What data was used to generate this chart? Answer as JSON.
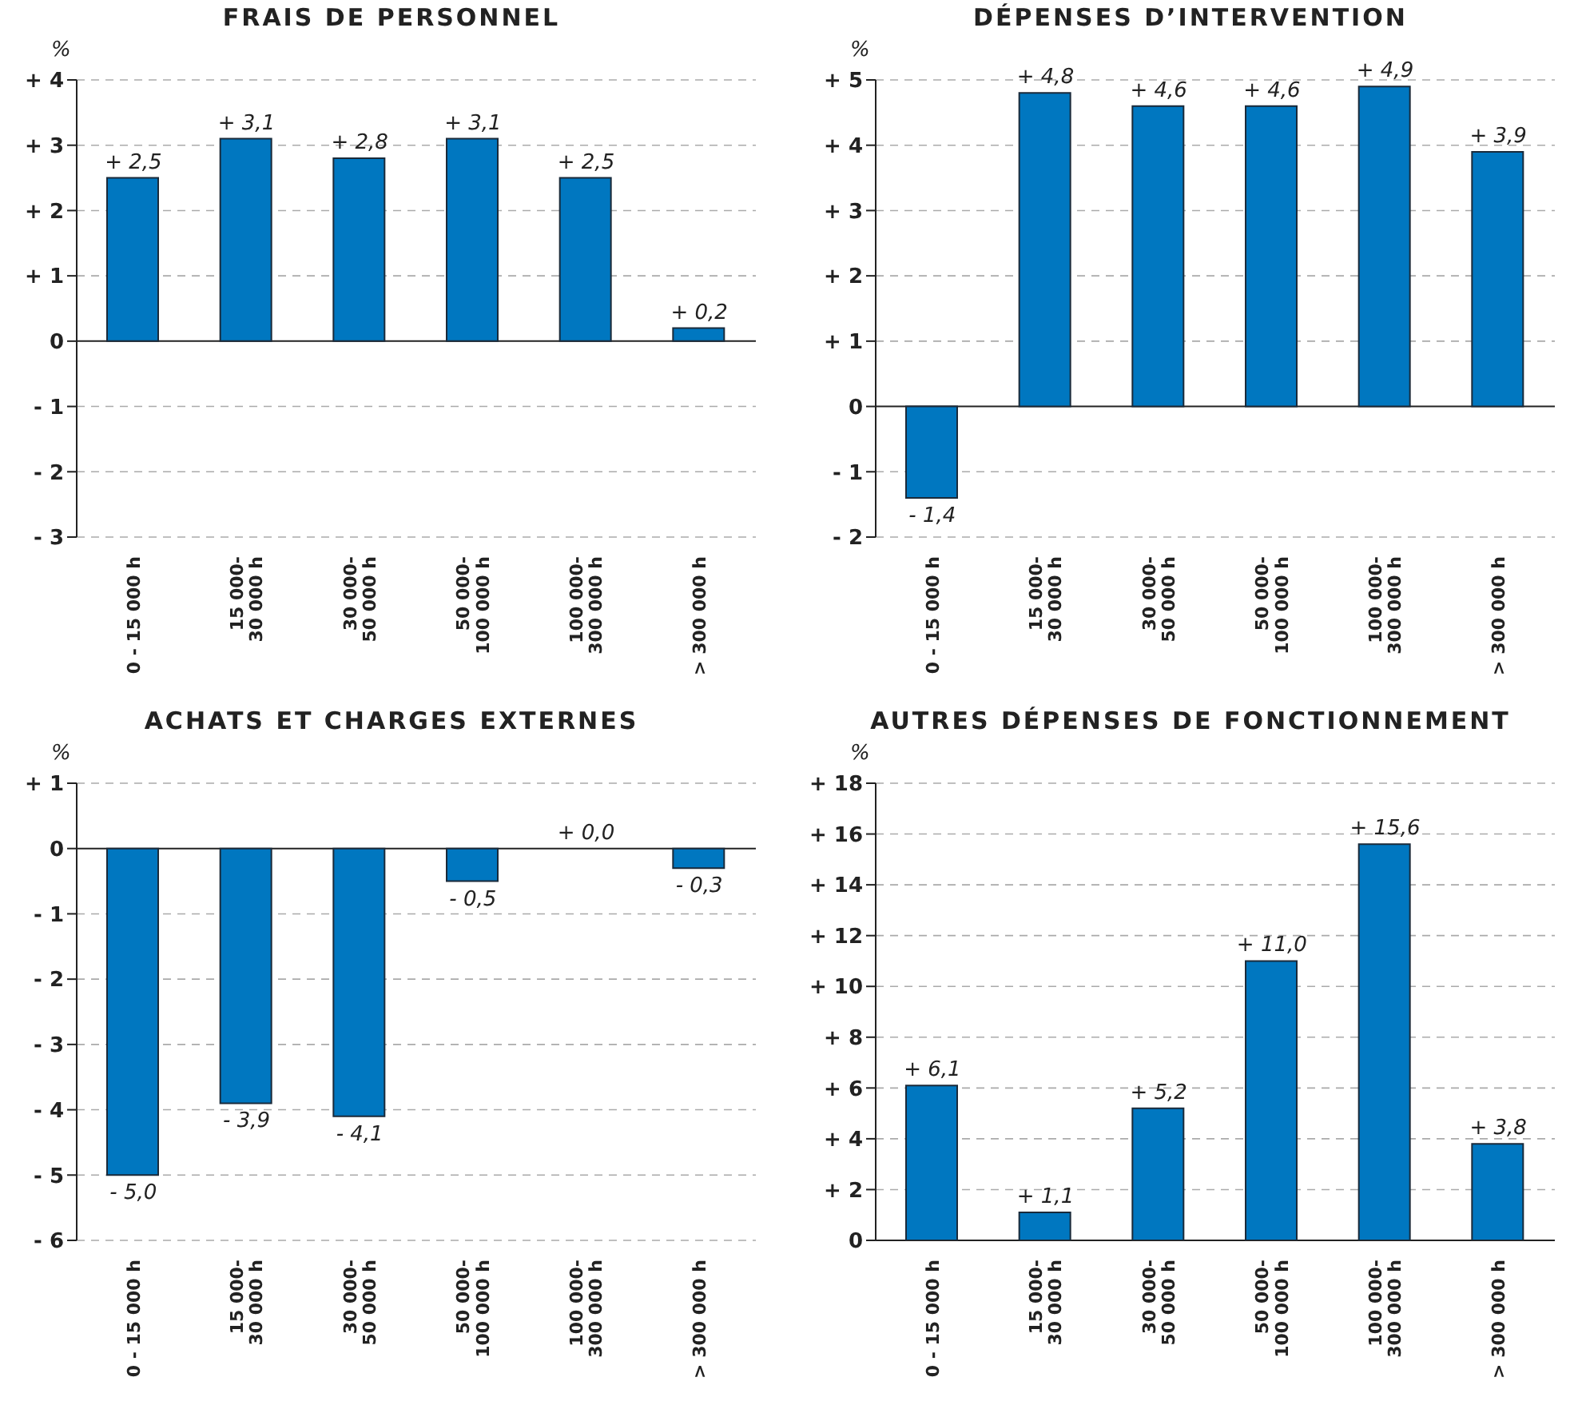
{
  "chart_data": [
    {
      "type": "bar",
      "title": "FRAIS DE PERSONNEL",
      "ylabel": "%",
      "categories": [
        "0 - 15 000 h",
        "15 000-\n30 000 h",
        "30 000-\n50 000 h",
        "50 000-\n100 000 h",
        "100 000-\n300 000 h",
        "> 300 000 h"
      ],
      "values": [
        2.5,
        3.1,
        2.8,
        3.1,
        2.5,
        0.2
      ],
      "value_labels": [
        "+ 2,5",
        "+ 3,1",
        "+ 2,8",
        "+ 3,1",
        "+ 2,5",
        "+ 0,2"
      ],
      "color": "#0077c0",
      "ylim": [
        -3,
        4
      ],
      "yticks": [
        {
          "value": 4,
          "label": "+ 4"
        },
        {
          "value": 3,
          "label": "+ 3"
        },
        {
          "value": 2,
          "label": "+ 2"
        },
        {
          "value": 1,
          "label": "+ 1"
        },
        {
          "value": 0,
          "label": "0"
        },
        {
          "value": -1,
          "label": "- 1"
        },
        {
          "value": -2,
          "label": "- 2"
        },
        {
          "value": -3,
          "label": "- 3"
        }
      ],
      "grid": "y"
    },
    {
      "type": "bar",
      "title": "DÉPENSES D’INTERVENTION",
      "ylabel": "%",
      "categories": [
        "0 - 15 000 h",
        "15 000-\n30 000 h",
        "30 000-\n50 000 h",
        "50 000-\n100 000 h",
        "100 000-\n300 000 h",
        "> 300 000 h"
      ],
      "values": [
        -1.4,
        4.8,
        4.6,
        4.6,
        4.9,
        3.9
      ],
      "value_labels": [
        "- 1,4",
        "+ 4,8",
        "+ 4,6",
        "+ 4,6",
        "+ 4,9",
        "+ 3,9"
      ],
      "color": "#0077c0",
      "ylim": [
        -2,
        5
      ],
      "yticks": [
        {
          "value": 5,
          "label": "+ 5"
        },
        {
          "value": 4,
          "label": "+ 4"
        },
        {
          "value": 3,
          "label": "+ 3"
        },
        {
          "value": 2,
          "label": "+ 2"
        },
        {
          "value": 1,
          "label": "+ 1"
        },
        {
          "value": 0,
          "label": "0"
        },
        {
          "value": -1,
          "label": "- 1"
        },
        {
          "value": -2,
          "label": "- 2"
        }
      ],
      "grid": "y"
    },
    {
      "type": "bar",
      "title": "ACHATS ET CHARGES EXTERNES",
      "ylabel": "%",
      "categories": [
        "0 - 15 000 h",
        "15 000-\n30 000 h",
        "30 000-\n50 000 h",
        "50 000-\n100 000 h",
        "100 000-\n300 000 h",
        "> 300 000 h"
      ],
      "values": [
        -5.0,
        -3.9,
        -4.1,
        -0.5,
        0.0,
        -0.3
      ],
      "value_labels": [
        "- 5,0",
        "- 3,9",
        "- 4,1",
        "- 0,5",
        "+ 0,0",
        "- 0,3"
      ],
      "color": "#0077c0",
      "ylim": [
        -6,
        1
      ],
      "yticks": [
        {
          "value": 1,
          "label": "+ 1"
        },
        {
          "value": 0,
          "label": "0"
        },
        {
          "value": -1,
          "label": "- 1"
        },
        {
          "value": -2,
          "label": "- 2"
        },
        {
          "value": -3,
          "label": "- 3"
        },
        {
          "value": -4,
          "label": "- 4"
        },
        {
          "value": -5,
          "label": "- 5"
        },
        {
          "value": -6,
          "label": "- 6"
        }
      ],
      "grid": "y"
    },
    {
      "type": "bar",
      "title": "AUTRES DÉPENSES DE FONCTIONNEMENT",
      "ylabel": "%",
      "categories": [
        "0 - 15 000 h",
        "15 000-\n30 000 h",
        "30 000-\n50 000 h",
        "50 000-\n100 000 h",
        "100 000-\n300 000 h",
        "> 300 000 h"
      ],
      "values": [
        6.1,
        1.1,
        5.2,
        11.0,
        15.6,
        3.8
      ],
      "value_labels": [
        "+ 6,1",
        "+ 1,1",
        "+ 5,2",
        "+ 11,0",
        "+ 15,6",
        "+ 3,8"
      ],
      "color": "#0077c0",
      "ylim": [
        0,
        18
      ],
      "yticks": [
        {
          "value": 18,
          "label": "+ 18"
        },
        {
          "value": 16,
          "label": "+ 16"
        },
        {
          "value": 14,
          "label": "+ 14"
        },
        {
          "value": 12,
          "label": "+ 12"
        },
        {
          "value": 10,
          "label": "+ 10"
        },
        {
          "value": 8,
          "label": "+ 8"
        },
        {
          "value": 6,
          "label": "+ 6"
        },
        {
          "value": 4,
          "label": "+ 4"
        },
        {
          "value": 2,
          "label": "+ 2"
        },
        {
          "value": 0,
          "label": "0"
        }
      ],
      "grid": "y"
    }
  ]
}
